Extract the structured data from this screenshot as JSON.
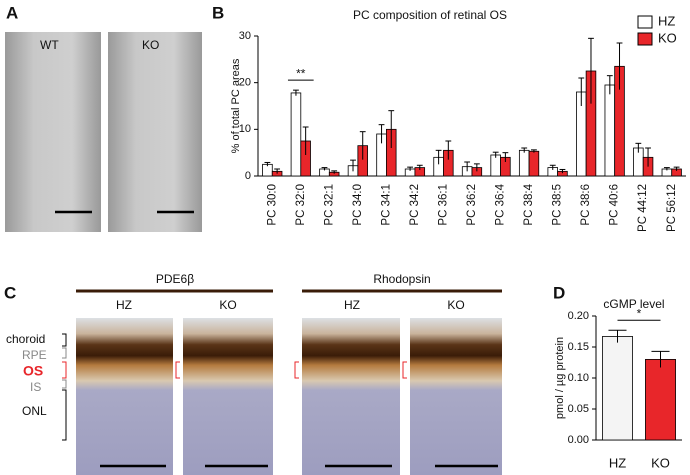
{
  "panels": {
    "a": {
      "label": "A",
      "wt": "WT",
      "ko": "KO"
    },
    "c": {
      "label": "C",
      "stains": [
        "PDE6β",
        "Rhodopsin"
      ],
      "groups": [
        "HZ",
        "KO",
        "HZ",
        "KO"
      ],
      "layers": [
        "choroid",
        "RPE",
        "OS",
        "IS",
        "ONL"
      ]
    }
  },
  "chart_data": [
    {
      "type": "bar",
      "panel_label": "B",
      "title": "PC composition of retinal OS",
      "ylabel": "% of total PC areas",
      "categories": [
        "PC 30:0",
        "PC 32:0",
        "PC 32:1",
        "PC 34:0",
        "PC 34:1",
        "PC 34:2",
        "PC 36:1",
        "PC 36:2",
        "PC 36:4",
        "PC 38:4",
        "PC 38:5",
        "PC 38:6",
        "PC 40:6",
        "PC 44:12",
        "PC 56:12"
      ],
      "series": [
        {
          "name": "HZ",
          "color": "#ffffff",
          "values": [
            2.5,
            17.8,
            1.5,
            2.2,
            9,
            1.5,
            4,
            2,
            4.5,
            5.5,
            1.8,
            18,
            19.5,
            6,
            1.5
          ],
          "errors": [
            0.4,
            0.6,
            0.3,
            1.2,
            2,
            0.4,
            1.5,
            1,
            0.6,
            0.5,
            0.5,
            3,
            2,
            1,
            0.3
          ]
        },
        {
          "name": "KO",
          "color": "#e8262a",
          "values": [
            1,
            7.5,
            0.8,
            6.5,
            10,
            1.8,
            5.5,
            1.8,
            4,
            5.3,
            1,
            22.5,
            23.5,
            4,
            1.5
          ],
          "errors": [
            0.5,
            3,
            0.3,
            3,
            4,
            0.5,
            2,
            0.8,
            1,
            0.3,
            0.4,
            7,
            5,
            2,
            0.4
          ]
        }
      ],
      "ylim": [
        0,
        30
      ],
      "yticks": [
        0,
        10,
        20,
        30
      ],
      "legend": "top-right",
      "annotations": [
        {
          "text": "**",
          "category": 1
        }
      ]
    },
    {
      "type": "bar",
      "panel_label": "D",
      "title": "cGMP level",
      "ylabel": "pmol / µg protein",
      "categories": [
        "HZ",
        "KO"
      ],
      "values": [
        0.167,
        0.13
      ],
      "errors": [
        0.01,
        0.013
      ],
      "colors": [
        "#f4f4f4",
        "#e8262a"
      ],
      "ylim": [
        0,
        0.2
      ],
      "yticks": [
        {
          "value": 0,
          "label": "0.00"
        },
        {
          "value": 0.05,
          "label": "0.05"
        },
        {
          "value": 0.1,
          "label": "0.10"
        },
        {
          "value": 0.15,
          "label": "0.15"
        },
        {
          "value": 0.2,
          "label": "0.20"
        }
      ],
      "annotations": [
        {
          "text": "*"
        }
      ]
    }
  ]
}
